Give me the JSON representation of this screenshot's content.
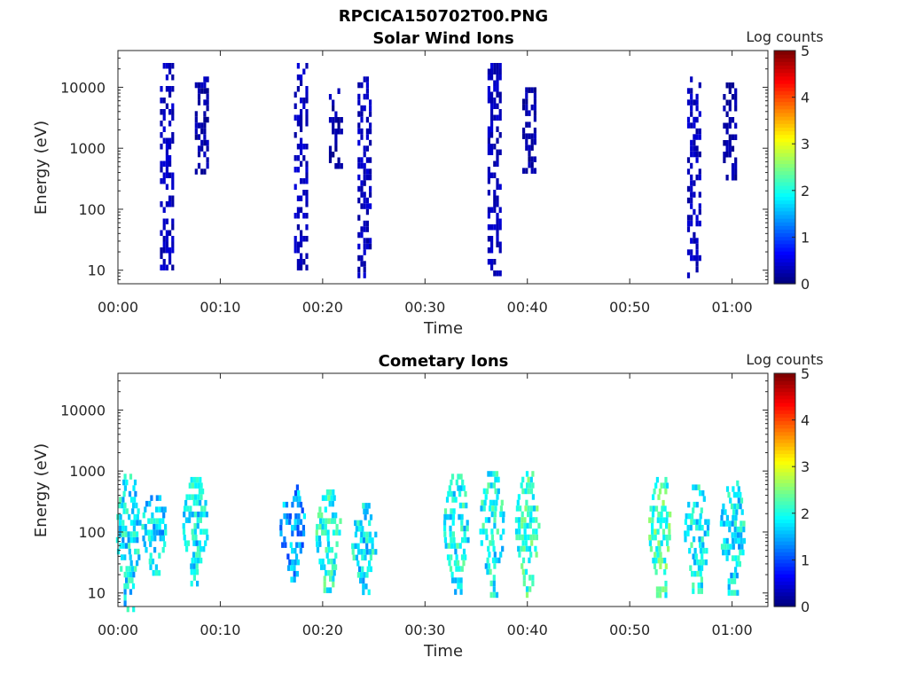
{
  "figure_title": "RPCICA150702T00.PNG",
  "chart_data": [
    {
      "type": "heatmap",
      "title": "Solar Wind Ions",
      "xlabel": "Time",
      "ylabel": "Energy (eV)",
      "x_ticks": [
        "00:00",
        "00:10",
        "00:20",
        "00:30",
        "00:40",
        "00:50",
        "01:00"
      ],
      "x_range_min": [
        0,
        63.5
      ],
      "y_scale": "log",
      "y_ticks": [
        "10",
        "100",
        "1000",
        "10000"
      ],
      "y_range": [
        6,
        40000
      ],
      "colorbar": {
        "label": "Log counts",
        "range": [
          0,
          5
        ],
        "ticks": [
          "0",
          "1",
          "2",
          "3",
          "4",
          "5"
        ],
        "colormap": "jet"
      },
      "bursts": [
        {
          "t": 4.8,
          "e_min": 10,
          "e_max": 25000,
          "log_counts": 0.3
        },
        {
          "t": 8.2,
          "e_min": 400,
          "e_max": 15000,
          "log_counts": 0.2
        },
        {
          "t": 17.9,
          "e_min": 10,
          "e_max": 25000,
          "log_counts": 0.3
        },
        {
          "t": 21.3,
          "e_min": 500,
          "e_max": 12000,
          "log_counts": 0.2
        },
        {
          "t": 24.1,
          "e_min": 8,
          "e_max": 15000,
          "log_counts": 0.3
        },
        {
          "t": 36.8,
          "e_min": 8,
          "e_max": 25000,
          "log_counts": 0.3
        },
        {
          "t": 40.2,
          "e_min": 400,
          "e_max": 10000,
          "log_counts": 0.2
        },
        {
          "t": 56.3,
          "e_min": 8,
          "e_max": 15000,
          "log_counts": 0.3
        },
        {
          "t": 59.8,
          "e_min": 300,
          "e_max": 12000,
          "log_counts": 0.2
        }
      ]
    },
    {
      "type": "heatmap",
      "title": "Cometary Ions",
      "xlabel": "Time",
      "ylabel": "Energy (eV)",
      "x_ticks": [
        "00:00",
        "00:10",
        "00:20",
        "00:30",
        "00:40",
        "00:50",
        "01:00"
      ],
      "x_range_min": [
        0,
        63.5
      ],
      "y_scale": "log",
      "y_ticks": [
        "10",
        "100",
        "1000",
        "10000"
      ],
      "y_range": [
        6,
        40000
      ],
      "colorbar": {
        "label": "Log counts",
        "range": [
          0,
          5
        ],
        "ticks": [
          "0",
          "1",
          "2",
          "3",
          "4",
          "5"
        ],
        "colormap": "jet"
      },
      "bursts": [
        {
          "t": 1.0,
          "e_min": 6,
          "e_max": 900,
          "log_counts": 1.8
        },
        {
          "t": 3.5,
          "e_min": 20,
          "e_max": 500,
          "log_counts": 1.7
        },
        {
          "t": 7.5,
          "e_min": 15,
          "e_max": 800,
          "log_counts": 1.8
        },
        {
          "t": 17.0,
          "e_min": 15,
          "e_max": 600,
          "log_counts": 1.4
        },
        {
          "t": 20.5,
          "e_min": 10,
          "e_max": 500,
          "log_counts": 2.0
        },
        {
          "t": 24.0,
          "e_min": 10,
          "e_max": 300,
          "log_counts": 1.8
        },
        {
          "t": 33.0,
          "e_min": 10,
          "e_max": 900,
          "log_counts": 1.9
        },
        {
          "t": 36.5,
          "e_min": 10,
          "e_max": 1000,
          "log_counts": 1.9
        },
        {
          "t": 40.0,
          "e_min": 10,
          "e_max": 1000,
          "log_counts": 2.1
        },
        {
          "t": 53.0,
          "e_min": 10,
          "e_max": 800,
          "log_counts": 2.2
        },
        {
          "t": 56.5,
          "e_min": 10,
          "e_max": 600,
          "log_counts": 1.9
        },
        {
          "t": 60.0,
          "e_min": 10,
          "e_max": 700,
          "log_counts": 1.8
        }
      ]
    }
  ]
}
